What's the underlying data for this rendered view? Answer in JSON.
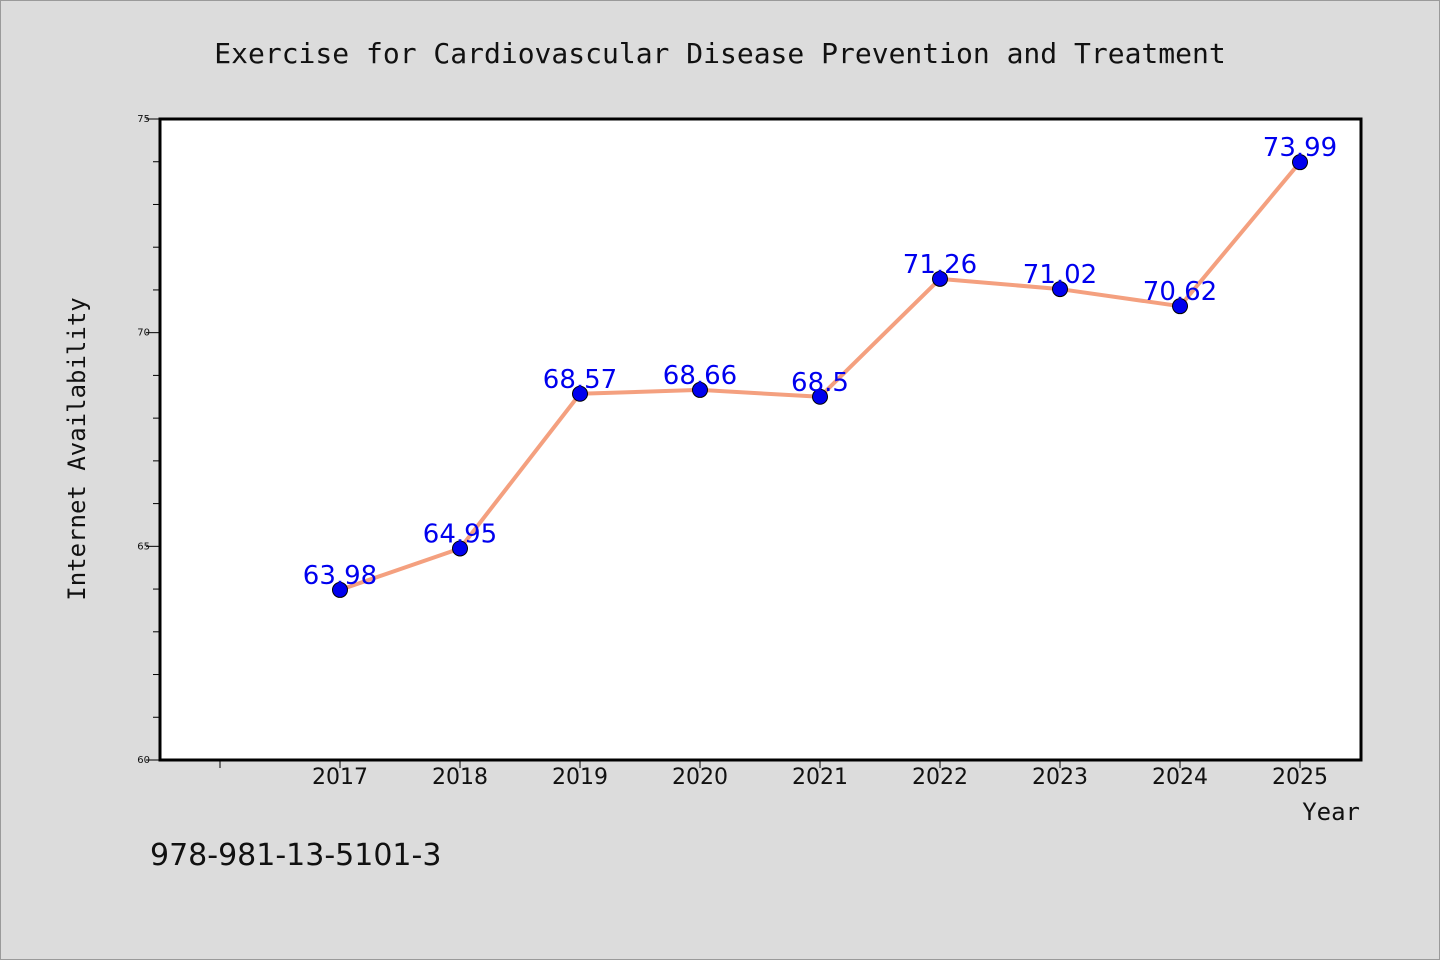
{
  "chart_data": {
    "type": "line",
    "title": "Exercise for Cardiovascular Disease Prevention and Treatment",
    "xlabel": "Year",
    "ylabel": "Internet Availability",
    "categories": [
      "2017",
      "2018",
      "2019",
      "2020",
      "2021",
      "2022",
      "2023",
      "2024",
      "2025"
    ],
    "values": [
      63.98,
      64.95,
      68.57,
      68.66,
      68.5,
      71.26,
      71.02,
      70.62,
      73.99
    ],
    "data_labels": [
      "63.98",
      "64.95",
      "68.57",
      "68.66",
      "68.5",
      "71.26",
      "71.02",
      "70.62",
      "73.99"
    ],
    "ylim": [
      60,
      75
    ],
    "yticks": [
      "60",
      "65",
      "70",
      "75"
    ],
    "grid": false,
    "legend": "none",
    "colors": {
      "line": "#f4a07f",
      "marker": "#0000ee",
      "label": "#0000ee",
      "background": "#dcdcdc",
      "plot_background": "#ffffff"
    }
  },
  "footer": {
    "isbn": "978-981-13-5101-3"
  }
}
